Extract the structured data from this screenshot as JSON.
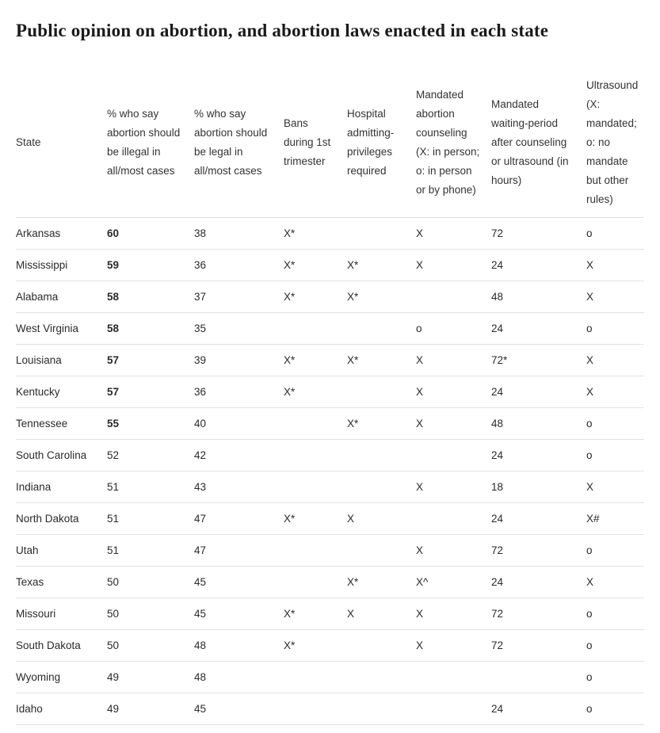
{
  "title": "Public opinion on abortion, and abortion laws enacted in each state",
  "chart_data": {
    "type": "table",
    "columns": [
      "State",
      "% who say abortion should be illegal in all/most cases",
      "% who say abortion should be legal in all/most cases",
      "Bans during 1st trimester",
      "Hospital admitting-privileges required",
      "Mandated abortion counseling (X: in person; o: in person or by phone)",
      "Mandated waiting-period after counseling or ultrasound (in hours)",
      "Ultrasound (X: mandated; o: no mandate but other rules)"
    ],
    "rows": [
      {
        "cells": [
          "Arkansas",
          "60",
          "38",
          "X*",
          "",
          "X",
          "72",
          "o"
        ],
        "illegal_bold": true
      },
      {
        "cells": [
          "Mississippi",
          "59",
          "36",
          "X*",
          "X*",
          "X",
          "24",
          "X"
        ],
        "illegal_bold": true
      },
      {
        "cells": [
          "Alabama",
          "58",
          "37",
          "X*",
          "X*",
          "",
          "48",
          "X"
        ],
        "illegal_bold": true
      },
      {
        "cells": [
          "West Virginia",
          "58",
          "35",
          "",
          "",
          "o",
          "24",
          "o"
        ],
        "illegal_bold": true
      },
      {
        "cells": [
          "Louisiana",
          "57",
          "39",
          "X*",
          "X*",
          "X",
          "72*",
          "X"
        ],
        "illegal_bold": true
      },
      {
        "cells": [
          "Kentucky",
          "57",
          "36",
          "X*",
          "",
          "X",
          "24",
          "X"
        ],
        "illegal_bold": true
      },
      {
        "cells": [
          "Tennessee",
          "55",
          "40",
          "",
          "X*",
          "X",
          "48",
          "o"
        ],
        "illegal_bold": true
      },
      {
        "cells": [
          "South Carolina",
          "52",
          "42",
          "",
          "",
          "",
          "24",
          "o"
        ],
        "illegal_bold": false
      },
      {
        "cells": [
          "Indiana",
          "51",
          "43",
          "",
          "",
          "X",
          "18",
          "X"
        ],
        "illegal_bold": false
      },
      {
        "cells": [
          "North Dakota",
          "51",
          "47",
          "X*",
          "X",
          "",
          "24",
          "X#"
        ],
        "illegal_bold": false
      },
      {
        "cells": [
          "Utah",
          "51",
          "47",
          "",
          "",
          "X",
          "72",
          "o"
        ],
        "illegal_bold": false
      },
      {
        "cells": [
          "Texas",
          "50",
          "45",
          "",
          "X*",
          "X^",
          "24",
          "X"
        ],
        "illegal_bold": false
      },
      {
        "cells": [
          "Missouri",
          "50",
          "45",
          "X*",
          "X",
          "X",
          "72",
          "o"
        ],
        "illegal_bold": false
      },
      {
        "cells": [
          "South Dakota",
          "50",
          "48",
          "X*",
          "",
          "X",
          "72",
          "o"
        ],
        "illegal_bold": false
      },
      {
        "cells": [
          "Wyoming",
          "49",
          "48",
          "",
          "",
          "",
          "",
          "o"
        ],
        "illegal_bold": false
      },
      {
        "cells": [
          "Idaho",
          "49",
          "45",
          "",
          "",
          "",
          "24",
          "o"
        ],
        "illegal_bold": false
      }
    ]
  }
}
